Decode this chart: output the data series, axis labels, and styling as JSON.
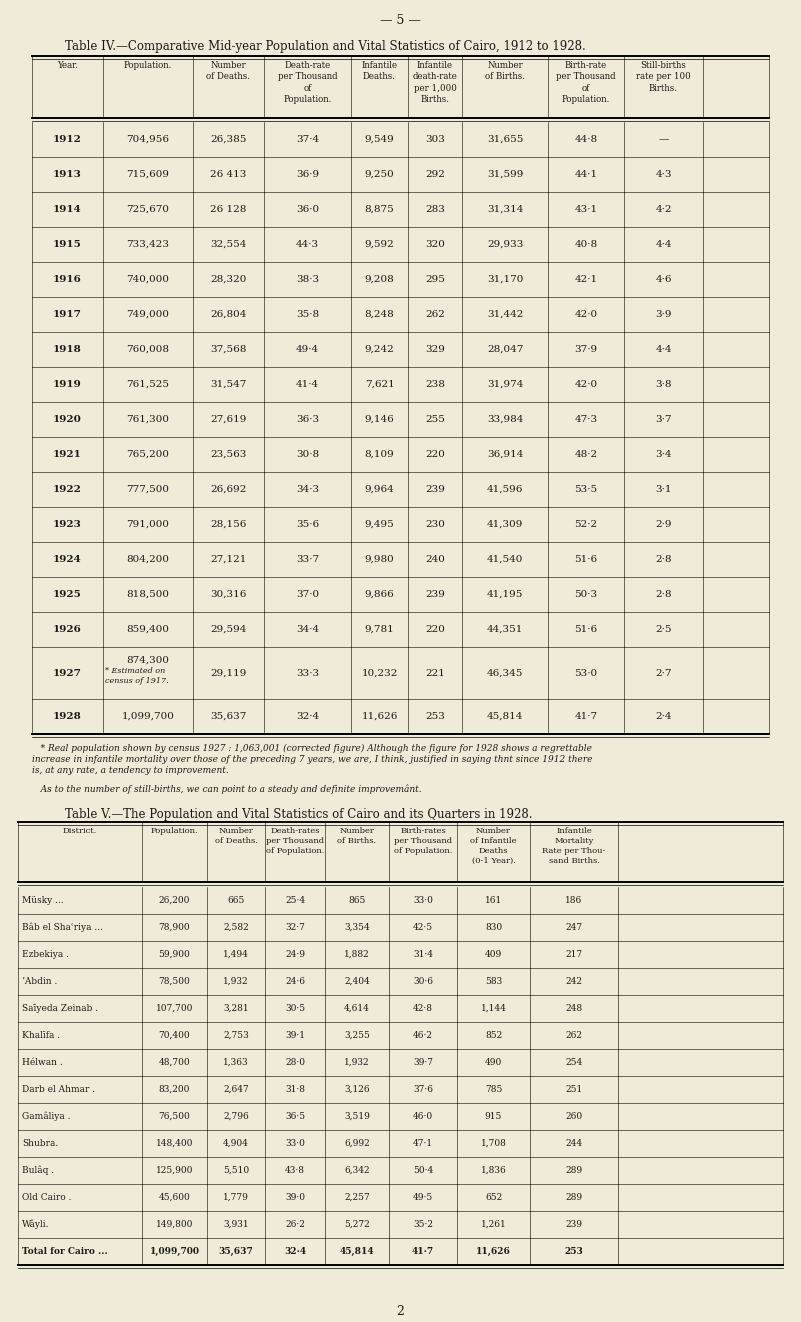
{
  "bg_color": "#f0ead8",
  "page_num": "— 5 —",
  "title4": "Table IV.—Comparative Mid-year Population and Vital Statistics of Cairo, 1912 to 1928.",
  "table4_headers_line1": [
    "",
    "",
    "Number",
    "Death-rate",
    "Infantile",
    "Infantile",
    "Number",
    "Birth-rate",
    "Still-births"
  ],
  "table4_headers_line2": [
    "Year.",
    "Population.",
    "of Deaths.",
    "per Thousand",
    "Deaths.",
    "death-rate",
    "of Births.",
    "per Thousand",
    "rate per 100"
  ],
  "table4_headers_line3": [
    "",
    "",
    "",
    "of",
    "",
    "per 1,000",
    "",
    "of",
    "Births."
  ],
  "table4_headers_line4": [
    "",
    "",
    "",
    "Population.",
    "",
    "Births.",
    "",
    "Population.",
    ""
  ],
  "table4_rows": [
    [
      "1912",
      "704,956",
      "26,385",
      "37·4",
      "9,549",
      "303",
      "31,655",
      "44·8",
      "—"
    ],
    [
      "1913",
      "715,609",
      "26 413",
      "36·9",
      "9,250",
      "292",
      "31,599",
      "44·1",
      "4·3"
    ],
    [
      "1914",
      "725,670",
      "26 128",
      "36·0",
      "8,875",
      "283",
      "31,314",
      "43·1",
      "4·2"
    ],
    [
      "1915",
      "733,423",
      "32,554",
      "44·3",
      "9,592",
      "320",
      "29,933",
      "40·8",
      "4·4"
    ],
    [
      "1916",
      "740,000",
      "28,320",
      "38·3",
      "9,208",
      "295",
      "31,170",
      "42·1",
      "4·6"
    ],
    [
      "1917",
      "749,000",
      "26,804",
      "35·8",
      "8,248",
      "262",
      "31,442",
      "42·0",
      "3·9"
    ],
    [
      "1918",
      "760,008",
      "37,568",
      "49·4",
      "9,242",
      "329",
      "28,047",
      "37·9",
      "4·4"
    ],
    [
      "1919",
      "761,525",
      "31,547",
      "41·4",
      "7,621",
      "238",
      "31,974",
      "42·0",
      "3·8"
    ],
    [
      "1920",
      "761,300",
      "27,619",
      "36·3",
      "9,146",
      "255",
      "33,984",
      "47·3",
      "3·7"
    ],
    [
      "1921",
      "765,200",
      "23,563",
      "30·8",
      "8,109",
      "220",
      "36,914",
      "48·2",
      "3·4"
    ],
    [
      "1922",
      "777,500",
      "26,692",
      "34·3",
      "9,964",
      "239",
      "41,596",
      "53·5",
      "3·1"
    ],
    [
      "1923",
      "791,000",
      "28,156",
      "35·6",
      "9,495",
      "230",
      "41,309",
      "52·2",
      "2·9"
    ],
    [
      "1924",
      "804,200",
      "27,121",
      "33·7",
      "9,980",
      "240",
      "41,540",
      "51·6",
      "2·8"
    ],
    [
      "1925",
      "818,500",
      "30,316",
      "37·0",
      "9,866",
      "239",
      "41,195",
      "50·3",
      "2·8"
    ],
    [
      "1926",
      "859,400",
      "29,594",
      "34·4",
      "9,781",
      "220",
      "44,351",
      "51·6",
      "2·5"
    ],
    [
      "1927",
      "874,300",
      "29,119",
      "33·3",
      "10,232",
      "221",
      "46,345",
      "53·0",
      "2·7"
    ],
    [
      "1928",
      "1,099,700",
      "35,637",
      "32·4",
      "11,626",
      "253",
      "45,814",
      "41·7",
      "2·4"
    ]
  ],
  "row1927_note": "* Estimated on\ncensus of 1917.",
  "footnote4_lines": [
    "   * Real population shown by census 1927 : 1,063,001 (corrected figure) Although the figure for 1928 shows a regrettable",
    "increase in infantile mortality over those of the preceding 7 years, we are, I think, justified in saying thnt since 1912 there",
    "is, at any rate, a tendency to improvement.",
    "",
    "   As to the number of still-births, we can point to a steady and definite improvemânt."
  ],
  "title5": "Table V.—The Population and Vital Statistics of Cairo and its Quarters in 1928.",
  "table5_headers_line1": [
    "",
    "",
    "Number",
    "Death-rates",
    "Number",
    "Birth-rates",
    "Number",
    "Infantile"
  ],
  "table5_headers_line2": [
    "District.",
    "Population.",
    "of Deaths.",
    "per Thousand",
    "of Births.",
    "per Thousand",
    "of Infantile",
    "Mortality"
  ],
  "table5_headers_line3": [
    "",
    "",
    "",
    "of Population.",
    "",
    "of Population.",
    "Deaths",
    "Rate per Thou-"
  ],
  "table5_headers_line4": [
    "",
    "",
    "",
    "",
    "",
    "",
    "(0-1 Year).",
    "sand Births."
  ],
  "table5_rows": [
    [
      "Müsky ...",
      "26,200",
      "665",
      "25·4",
      "865",
      "33·0",
      "161",
      "186"
    ],
    [
      "Bâb el Shaʿriya ...",
      "78,900",
      "2,582",
      "32·7",
      "3,354",
      "42·5",
      "830",
      "247"
    ],
    [
      "Ezbekiya .",
      "59,900",
      "1,494",
      "24·9",
      "1,882",
      "31·4",
      "409",
      "217"
    ],
    [
      "ʼAbdin .",
      "78,500",
      "1,932",
      "24·6",
      "2,404",
      "30·6",
      "583",
      "242"
    ],
    [
      "Saīyeda Zeinab .",
      "107,700",
      "3,281",
      "30·5",
      "4,614",
      "42·8",
      "1,144",
      "248"
    ],
    [
      "Khalīfa .",
      "70,400",
      "2,753",
      "39·1",
      "3,255",
      "46·2",
      "852",
      "262"
    ],
    [
      "Hélwan .",
      "48,700",
      "1,363",
      "28·0",
      "1,932",
      "39·7",
      "490",
      "254"
    ],
    [
      "Darb el Ahmar .",
      "83,200",
      "2,647",
      "31·8",
      "3,126",
      "37·6",
      "785",
      "251"
    ],
    [
      "Gamâliya .",
      "76,500",
      "2,796",
      "36·5",
      "3,519",
      "46·0",
      "915",
      "260"
    ],
    [
      "Shubra.",
      "148,400",
      "4,904",
      "33·0",
      "6,992",
      "47·1",
      "1,708",
      "244"
    ],
    [
      "Bulâq .",
      "125,900",
      "5,510",
      "43·8",
      "6,342",
      "50·4",
      "1,836",
      "289"
    ],
    [
      "Old Cairo .",
      "45,600",
      "1,779",
      "39·0",
      "2,257",
      "49·5",
      "652",
      "289"
    ],
    [
      "Wâyli.",
      "149,800",
      "3,931",
      "26·2",
      "5,272",
      "35·2",
      "1,261",
      "239"
    ],
    [
      "Total for Cairo ...",
      "1,099,700",
      "35,637",
      "32·4",
      "45,814",
      "41·7",
      "11,626",
      "253"
    ]
  ],
  "page_num2": "2"
}
